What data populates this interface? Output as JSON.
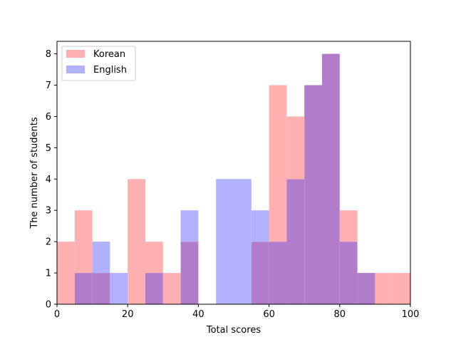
{
  "chart_data": {
    "type": "bar",
    "subtype": "overlapping-histogram",
    "title": "",
    "xlabel": "Total scores",
    "ylabel": "The number of students",
    "xlim": [
      0,
      100
    ],
    "ylim": [
      0,
      8.4
    ],
    "xticks": [
      0,
      20,
      40,
      60,
      80,
      100
    ],
    "yticks": [
      0,
      1,
      2,
      3,
      4,
      5,
      6,
      7,
      8
    ],
    "bin_width": 5,
    "bin_starts": [
      0,
      5,
      10,
      15,
      20,
      25,
      30,
      35,
      40,
      45,
      50,
      55,
      60,
      65,
      70,
      75,
      80,
      85,
      90,
      95
    ],
    "grid": false,
    "legend_position": "top-left",
    "series": [
      {
        "name": "Korean",
        "color": "#ffb1b1",
        "values": [
          2,
          3,
          1,
          0,
          4,
          2,
          1,
          2,
          0,
          0,
          0,
          2,
          7,
          6,
          7,
          8,
          3,
          1,
          1,
          1
        ]
      },
      {
        "name": "English",
        "color": "#b1b1ff",
        "values": [
          0,
          1,
          2,
          1,
          0,
          1,
          0,
          3,
          0,
          4,
          4,
          3,
          2,
          4,
          7,
          8,
          2,
          1,
          0,
          0
        ]
      }
    ],
    "overlap_color": "#b17dcb"
  }
}
